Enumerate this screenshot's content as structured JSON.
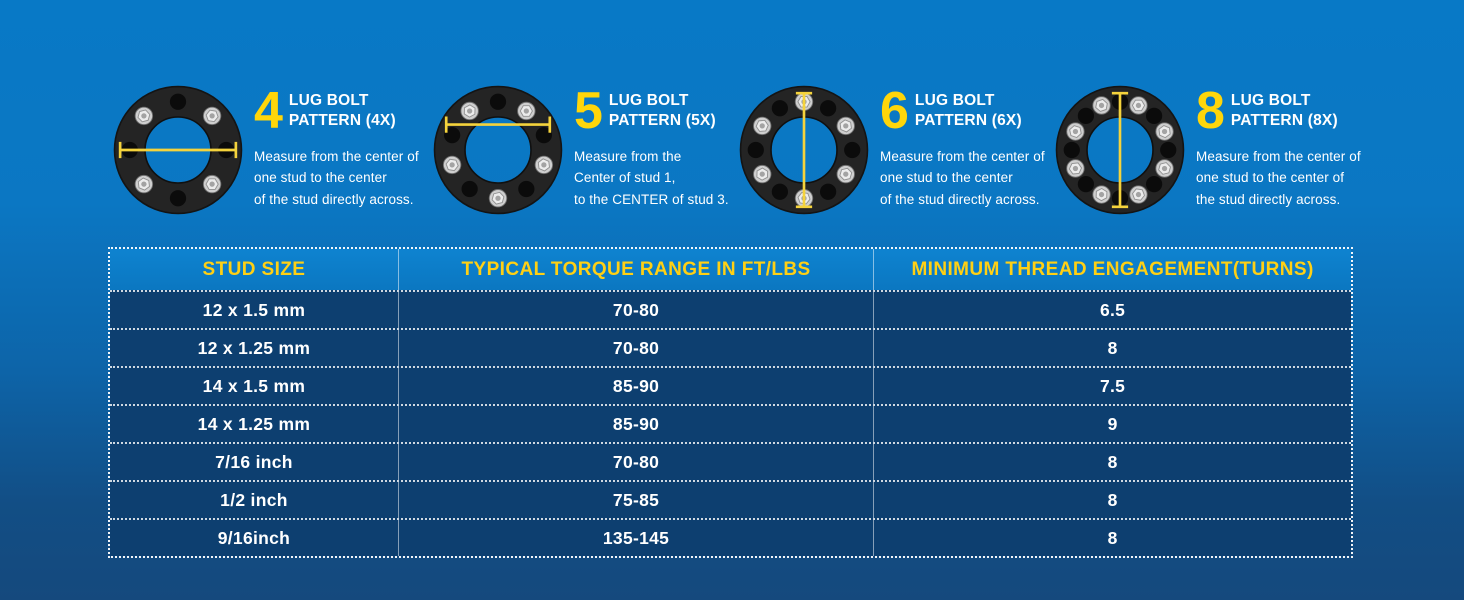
{
  "colors": {
    "accent_yellow": "#FFD60A",
    "header_text_yellow": "#FFD014",
    "header_bg_blue": "#0C7CC6",
    "row_bg_navy": "#0D3F70",
    "background_top_blue": "#0879C6",
    "background_bottom_navy": "#15497D",
    "measure_line_yellow": "#F5D33C",
    "text_white": "#FFFFFF"
  },
  "patterns": [
    {
      "number": "4",
      "title_lines": [
        "LUG BOLT",
        "PATTERN (4X)"
      ],
      "desc_lines": [
        "Measure from the center of",
        "one stud to the center",
        "of the stud directly across."
      ],
      "lugs": 4,
      "measure_line": "horizontal-center",
      "image": "wheel-spacer-4-lug"
    },
    {
      "number": "5",
      "title_lines": [
        "LUG BOLT",
        "PATTERN (5X)"
      ],
      "desc_lines": [
        "Measure from the",
        "Center of stud 1,",
        "to the CENTER  of stud 3."
      ],
      "lugs": 5,
      "measure_line": "horizontal-upper",
      "image": "wheel-spacer-5-lug"
    },
    {
      "number": "6",
      "title_lines": [
        "LUG BOLT",
        "PATTERN (6X)"
      ],
      "desc_lines": [
        "Measure from the center of",
        "one stud to the center",
        "of the stud directly across."
      ],
      "lugs": 6,
      "measure_line": "vertical",
      "image": "wheel-spacer-6-lug"
    },
    {
      "number": "8",
      "title_lines": [
        "LUG BOLT",
        "PATTERN (8X)"
      ],
      "desc_lines": [
        "Measure from the center of",
        "one stud to the center of",
        "the stud directly across."
      ],
      "lugs": 8,
      "measure_line": "vertical",
      "image": "wheel-spacer-8-lug"
    }
  ],
  "table": {
    "headers": [
      "STUD SIZE",
      "TYPICAL TORQUE RANGE IN FT/LBS",
      "MINIMUM THREAD ENGAGEMENT(TURNS)"
    ],
    "rows": [
      [
        "12 x 1.5 mm",
        "70-80",
        "6.5"
      ],
      [
        "12 x 1.25 mm",
        "70-80",
        "8"
      ],
      [
        "14 x 1.5 mm",
        "85-90",
        "7.5"
      ],
      [
        "14 x 1.25 mm",
        "85-90",
        "9"
      ],
      [
        "7/16 inch",
        "70-80",
        "8"
      ],
      [
        "1/2 inch",
        "75-85",
        "8"
      ],
      [
        "9/16inch",
        "135-145",
        "8"
      ]
    ]
  }
}
